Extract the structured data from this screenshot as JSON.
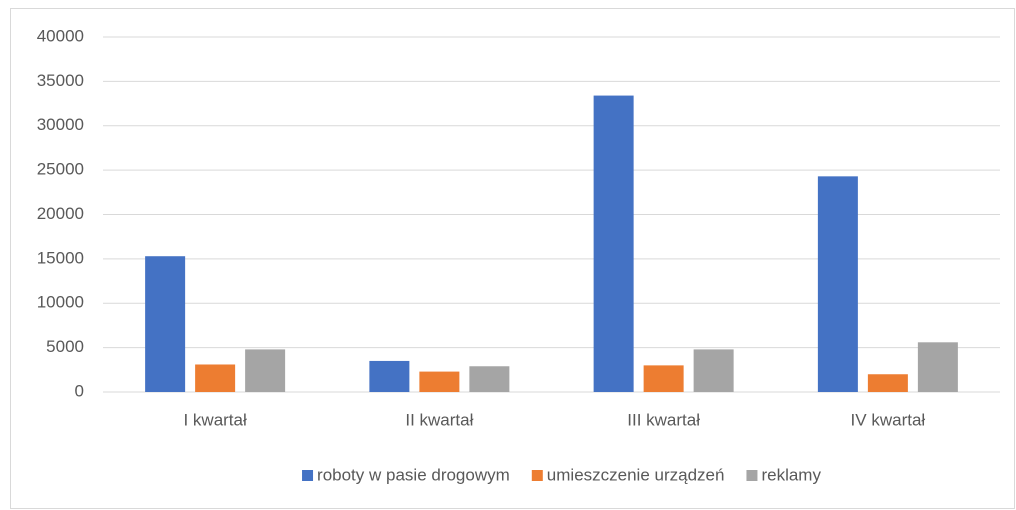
{
  "chart_data": {
    "type": "bar",
    "categories": [
      "I kwartał",
      "II kwartał",
      "III kwartał",
      "IV kwartał"
    ],
    "series": [
      {
        "name": "roboty w pasie drogowym",
        "color": "#4472c4",
        "values": [
          15300,
          3500,
          33400,
          24300
        ]
      },
      {
        "name": "umieszczenie urządzeń",
        "color": "#ed7d31",
        "values": [
          3100,
          2300,
          3000,
          2000
        ]
      },
      {
        "name": "reklamy",
        "color": "#a5a5a5",
        "values": [
          4800,
          2900,
          4800,
          5600
        ]
      }
    ],
    "ylim": [
      0,
      40000
    ],
    "yticks": [
      0,
      5000,
      10000,
      15000,
      20000,
      25000,
      30000,
      35000,
      40000
    ],
    "grid": true,
    "legend": "bottom"
  }
}
